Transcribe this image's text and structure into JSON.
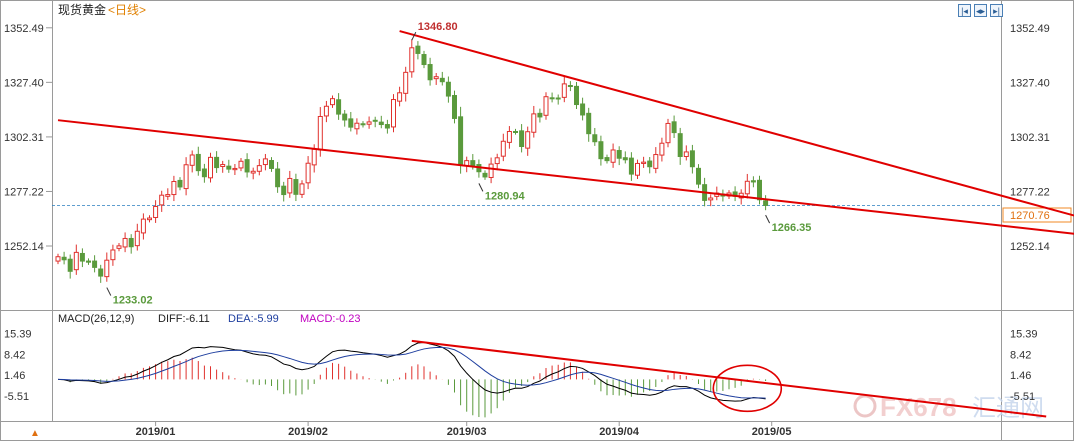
{
  "instrument": {
    "name": "现货黄金",
    "period": "<日线>"
  },
  "colors": {
    "up": "#e0312d",
    "down": "#5a9a3c",
    "trend": "#e00000",
    "dif": "#000000",
    "dea": "#1f3f9f",
    "macd_label": "#c000c0",
    "last_price_box": "#f08a24"
  },
  "toolbar": {
    "buttons": [
      "|◂",
      "◂▸",
      "▸|"
    ]
  },
  "last_price": "1270.76",
  "macd_params": "MACD(26,12,9)",
  "macd_values": {
    "diff": "DIFF:-6.11",
    "dea": "DEA:-5.99",
    "macd": "MACD:-0.23"
  },
  "corner_icon": "▲",
  "watermark": {
    "left": "FX678",
    "right": "汇通网"
  },
  "chart_data": {
    "type": "candlestick",
    "price_axis": {
      "ticks": [
        "1352.49",
        "1327.40",
        "1302.31",
        "1277.22",
        "1252.14"
      ],
      "ylim": [
        1225,
        1357
      ]
    },
    "macd_axis": {
      "ticks": [
        "15.39",
        "8.42",
        "1.46",
        "-5.51"
      ],
      "ylim": [
        -13,
        18
      ]
    },
    "x_labels": [
      "2019/01",
      "2019/02",
      "2019/03",
      "2019/04",
      "2019/05"
    ],
    "annotations": [
      {
        "label": "1346.80",
        "bar": 58,
        "value": 1346.8,
        "position": "above"
      },
      {
        "label": "1280.94",
        "bar": 69,
        "value": 1280.94,
        "position": "below"
      },
      {
        "label": "1266.35",
        "bar": 116,
        "value": 1266.35,
        "position": "below"
      },
      {
        "label": "1233.02",
        "bar": 8,
        "value": 1233.02,
        "position": "below"
      }
    ],
    "closes": [
      1247.2,
      1245.8,
      1240.5,
      1249.2,
      1245.2,
      1244.7,
      1242.3,
      1238.3,
      1245.6,
      1250.3,
      1252.2,
      1255.6,
      1251.8,
      1258.9,
      1264.5,
      1265.0,
      1270.3,
      1275.5,
      1275.8,
      1281.8,
      1279.3,
      1289.5,
      1294.0,
      1286.8,
      1284.0,
      1292.9,
      1288.2,
      1289.6,
      1287.5,
      1287.8,
      1291.1,
      1286.2,
      1286.5,
      1289.1,
      1292.2,
      1287.8,
      1279.4,
      1275.8,
      1283.2,
      1275.9,
      1280.7,
      1290.2,
      1296.6,
      1311.7,
      1316.4,
      1319.9,
      1312.8,
      1310.1,
      1306.8,
      1308.6,
      1307.9,
      1309.2,
      1309.6,
      1308.0,
      1306.4,
      1319.5,
      1322.6,
      1332.0,
      1343.3,
      1340.7,
      1335.6,
      1328.6,
      1330.0,
      1327.7,
      1321.1,
      1310.8,
      1289.6,
      1291.4,
      1289.1,
      1286.3,
      1283.9,
      1289.8,
      1292.7,
      1300.3,
      1304.8,
      1304.6,
      1297.9,
      1304.7,
      1312.9,
      1311.5,
      1320.8,
      1320.2,
      1320.0,
      1326.7,
      1325.8,
      1317.2,
      1312.4,
      1303.8,
      1300.1,
      1292.3,
      1291.4,
      1296.3,
      1292.5,
      1291.8,
      1285.2,
      1290.1,
      1290.7,
      1288.6,
      1294.2,
      1299.4,
      1308.5,
      1304.3,
      1293.3,
      1295.4,
      1288.6,
      1280.6,
      1273.1,
      1274.2,
      1276.5,
      1275.1,
      1276.5,
      1275.0,
      1276.4,
      1281.9,
      1281.6,
      1273.4,
      1270.8
    ],
    "trendlines": [
      {
        "from": [
          0,
          1310
        ],
        "to": [
          185,
          1252
        ],
        "name": "lower"
      },
      {
        "from": [
          56,
          1351
        ],
        "to": [
          185,
          1252
        ],
        "name": "upper"
      }
    ],
    "macd_trendline": {
      "from": [
        58,
        13.0
      ],
      "to": [
        162,
        -12.5
      ]
    }
  }
}
